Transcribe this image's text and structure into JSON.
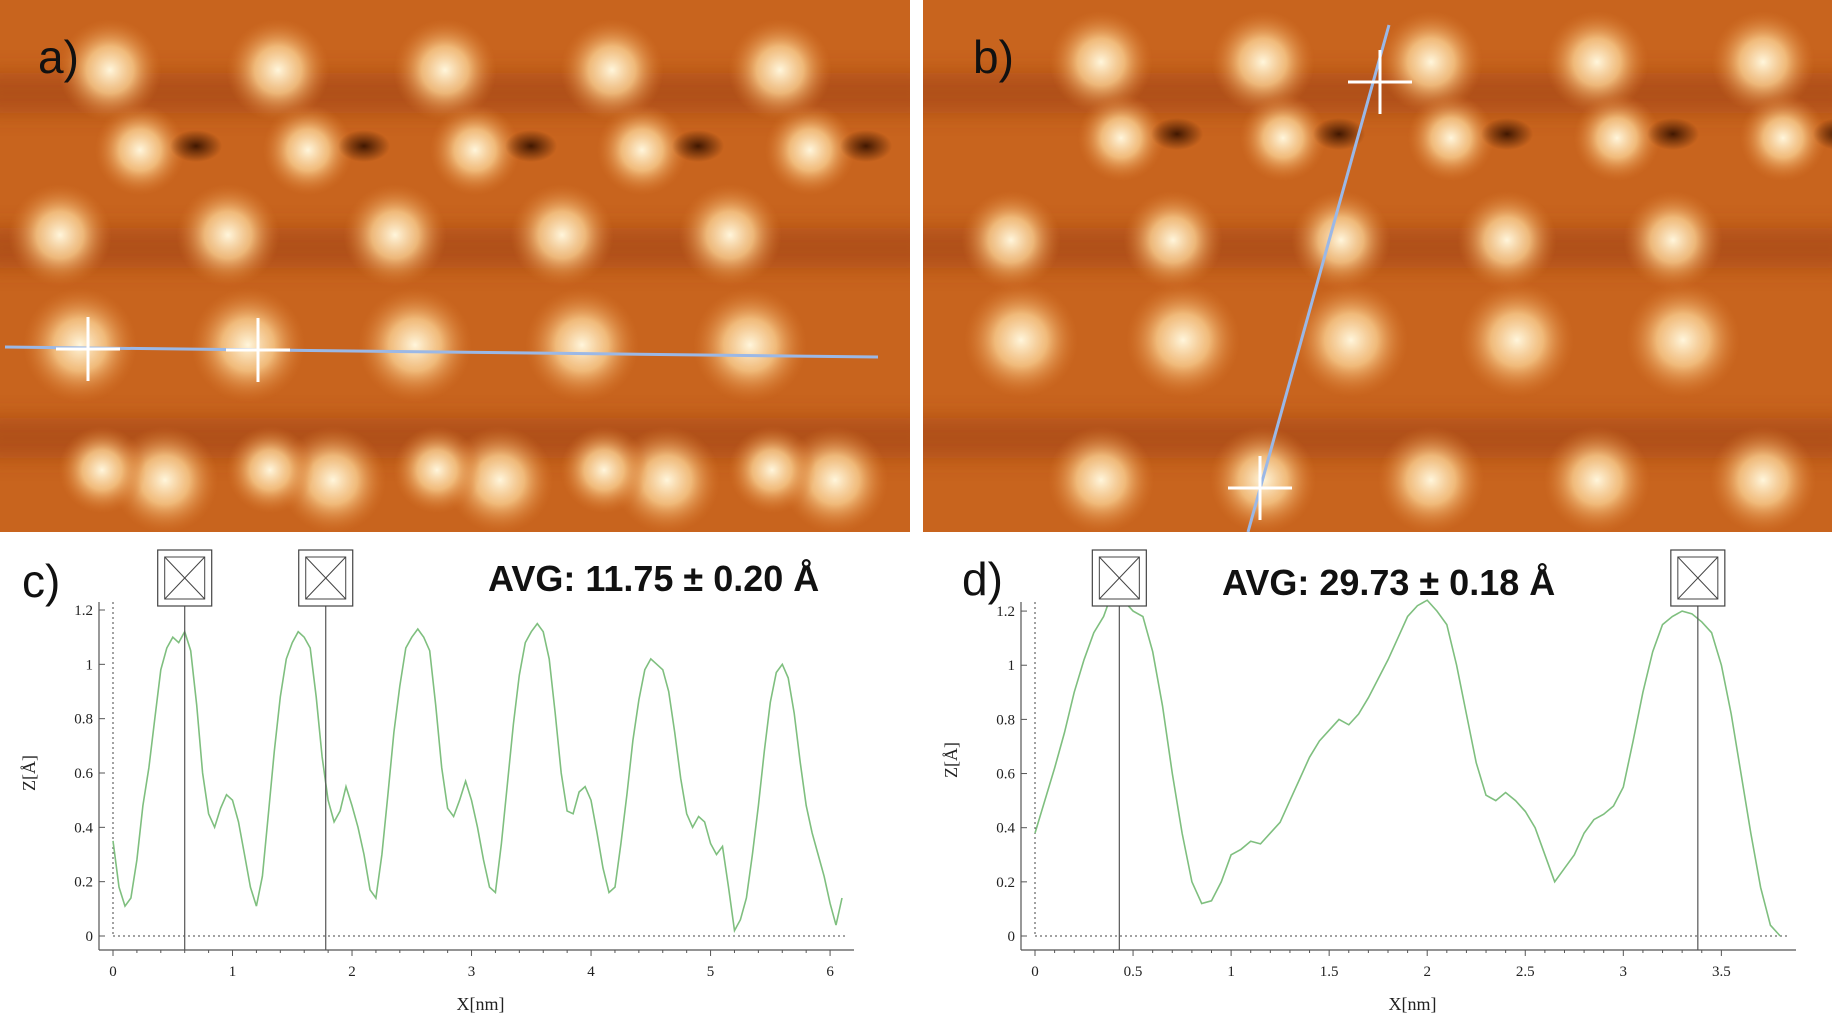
{
  "panels": {
    "a": {
      "letter": "a)"
    },
    "b": {
      "letter": "b)"
    },
    "c": {
      "letter": "c)",
      "avg": "AVG: 11.75 ± 0.20 Å"
    },
    "d": {
      "letter": "d)",
      "avg": "AVG: 29.73 ± 0.18 Å"
    }
  },
  "colors": {
    "stm_dark": "#3a1400",
    "stm_mid": "#d9772a",
    "stm_bright": "#fff6dc",
    "profile_line": "#9bb8e6",
    "marker": "#ffffff",
    "curve": "#7fbf7f",
    "axis": "#555555"
  },
  "chart_data": [
    {
      "type": "line",
      "panel": "c",
      "xlabel": "X[nm]",
      "ylabel": "Z[Å]",
      "xlim": [
        0,
        6.15
      ],
      "ylim": [
        0,
        1.2
      ],
      "xticks": [
        0,
        1,
        2,
        3,
        4,
        5,
        6
      ],
      "yticks": [
        0,
        0.2,
        0.4,
        0.6,
        0.8,
        1,
        1.2
      ],
      "markers_x": [
        0.6,
        1.78
      ],
      "series": [
        {
          "x": [
            0,
            0.05,
            0.1,
            0.15,
            0.2,
            0.25,
            0.3,
            0.35,
            0.4,
            0.45,
            0.5,
            0.55,
            0.6,
            0.65,
            0.7,
            0.75,
            0.8,
            0.85,
            0.9,
            0.95,
            1.0,
            1.05,
            1.1,
            1.15,
            1.2,
            1.25,
            1.3,
            1.35,
            1.4,
            1.45,
            1.5,
            1.55,
            1.6,
            1.65,
            1.7,
            1.75,
            1.8,
            1.85,
            1.9,
            1.95,
            2.0,
            2.05,
            2.1,
            2.15,
            2.2,
            2.25,
            2.3,
            2.35,
            2.4,
            2.45,
            2.5,
            2.55,
            2.6,
            2.65,
            2.7,
            2.75,
            2.8,
            2.85,
            2.9,
            2.95,
            3.0,
            3.05,
            3.1,
            3.15,
            3.2,
            3.25,
            3.3,
            3.35,
            3.4,
            3.45,
            3.5,
            3.55,
            3.6,
            3.65,
            3.7,
            3.75,
            3.8,
            3.85,
            3.9,
            3.95,
            4.0,
            4.05,
            4.1,
            4.15,
            4.2,
            4.25,
            4.3,
            4.35,
            4.4,
            4.45,
            4.5,
            4.55,
            4.6,
            4.65,
            4.7,
            4.75,
            4.8,
            4.85,
            4.9,
            4.95,
            5.0,
            5.05,
            5.1,
            5.15,
            5.2,
            5.25,
            5.3,
            5.35,
            5.4,
            5.45,
            5.5,
            5.55,
            5.6,
            5.65,
            5.7,
            5.75,
            5.8,
            5.85,
            5.9,
            5.95,
            6.0,
            6.05,
            6.1
          ],
          "values": [
            0.35,
            0.18,
            0.11,
            0.14,
            0.28,
            0.48,
            0.62,
            0.8,
            0.98,
            1.06,
            1.1,
            1.08,
            1.12,
            1.05,
            0.85,
            0.6,
            0.45,
            0.4,
            0.47,
            0.52,
            0.5,
            0.42,
            0.3,
            0.18,
            0.11,
            0.22,
            0.45,
            0.68,
            0.88,
            1.02,
            1.08,
            1.12,
            1.1,
            1.06,
            0.88,
            0.66,
            0.5,
            0.42,
            0.46,
            0.55,
            0.48,
            0.4,
            0.3,
            0.17,
            0.14,
            0.3,
            0.52,
            0.75,
            0.92,
            1.06,
            1.1,
            1.13,
            1.1,
            1.05,
            0.85,
            0.62,
            0.47,
            0.44,
            0.5,
            0.57,
            0.5,
            0.4,
            0.28,
            0.18,
            0.16,
            0.34,
            0.56,
            0.78,
            0.96,
            1.08,
            1.12,
            1.15,
            1.12,
            1.02,
            0.82,
            0.6,
            0.46,
            0.45,
            0.53,
            0.55,
            0.5,
            0.38,
            0.25,
            0.16,
            0.18,
            0.34,
            0.52,
            0.72,
            0.87,
            0.98,
            1.02,
            1.0,
            0.98,
            0.9,
            0.75,
            0.58,
            0.45,
            0.4,
            0.44,
            0.42,
            0.34,
            0.3,
            0.33,
            0.18,
            0.02,
            0.06,
            0.14,
            0.3,
            0.48,
            0.68,
            0.86,
            0.97,
            1.0,
            0.95,
            0.82,
            0.64,
            0.48,
            0.38,
            0.3,
            0.22,
            0.12,
            0.04,
            0.14
          ]
        }
      ]
    },
    {
      "type": "line",
      "panel": "d",
      "xlabel": "X[nm]",
      "ylabel": "Z[Å]",
      "xlim": [
        0,
        3.85
      ],
      "ylim": [
        0,
        1.3
      ],
      "xticks": [
        0,
        0.5,
        1,
        1.5,
        2,
        2.5,
        3,
        3.5
      ],
      "yticks": [
        0,
        0.2,
        0.4,
        0.6,
        0.8,
        1,
        1.2
      ],
      "markers_x": [
        0.43,
        3.38
      ],
      "series": [
        {
          "x": [
            0,
            0.05,
            0.1,
            0.15,
            0.2,
            0.25,
            0.3,
            0.35,
            0.4,
            0.45,
            0.5,
            0.55,
            0.6,
            0.65,
            0.7,
            0.75,
            0.8,
            0.85,
            0.9,
            0.95,
            1.0,
            1.05,
            1.1,
            1.15,
            1.2,
            1.25,
            1.3,
            1.35,
            1.4,
            1.45,
            1.5,
            1.55,
            1.6,
            1.65,
            1.7,
            1.75,
            1.8,
            1.85,
            1.9,
            1.95,
            2.0,
            2.05,
            2.1,
            2.15,
            2.2,
            2.25,
            2.3,
            2.35,
            2.4,
            2.45,
            2.5,
            2.55,
            2.6,
            2.65,
            2.7,
            2.75,
            2.8,
            2.85,
            2.9,
            2.95,
            3.0,
            3.05,
            3.1,
            3.15,
            3.2,
            3.25,
            3.3,
            3.35,
            3.4,
            3.45,
            3.5,
            3.55,
            3.6,
            3.65,
            3.7,
            3.75,
            3.8
          ],
          "values": [
            0.38,
            0.5,
            0.62,
            0.75,
            0.9,
            1.02,
            1.12,
            1.18,
            1.28,
            1.24,
            1.2,
            1.18,
            1.05,
            0.85,
            0.6,
            0.38,
            0.2,
            0.12,
            0.13,
            0.2,
            0.3,
            0.32,
            0.35,
            0.34,
            0.38,
            0.42,
            0.5,
            0.58,
            0.66,
            0.72,
            0.76,
            0.8,
            0.78,
            0.82,
            0.88,
            0.95,
            1.02,
            1.1,
            1.18,
            1.22,
            1.24,
            1.2,
            1.15,
            1.0,
            0.82,
            0.64,
            0.52,
            0.5,
            0.53,
            0.5,
            0.46,
            0.4,
            0.3,
            0.2,
            0.25,
            0.3,
            0.38,
            0.43,
            0.45,
            0.48,
            0.55,
            0.72,
            0.9,
            1.05,
            1.15,
            1.18,
            1.2,
            1.19,
            1.16,
            1.12,
            1.0,
            0.82,
            0.6,
            0.38,
            0.18,
            0.04,
            0.0
          ]
        }
      ]
    }
  ]
}
